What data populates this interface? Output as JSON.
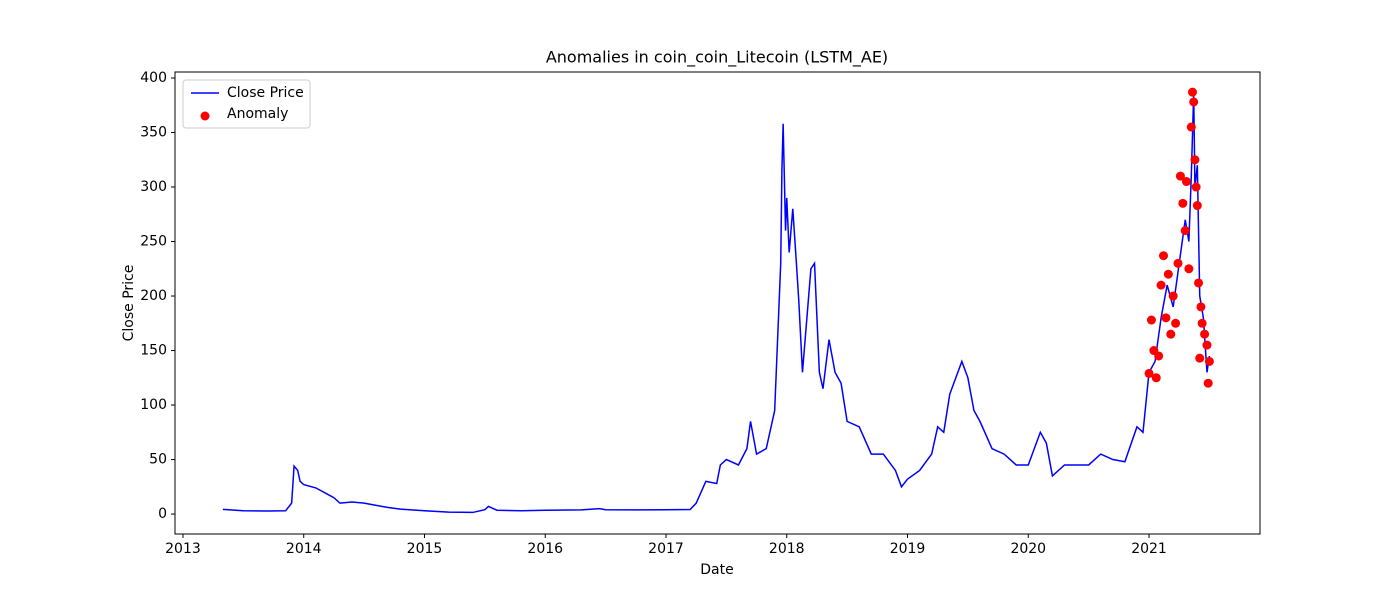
{
  "chart_data": {
    "type": "line",
    "title": "Anomalies in coin_coin_Litecoin (LSTM_AE)",
    "x_label": "Date",
    "y_label": "Close Price",
    "xlim": [
      2012.934,
      2021.919
    ],
    "ylim": [
      -18.3,
      405.5
    ],
    "xticks": [
      2013,
      2014,
      2015,
      2016,
      2017,
      2018,
      2019,
      2020,
      2021
    ],
    "yticks": [
      0,
      50,
      100,
      150,
      200,
      250,
      300,
      350,
      400
    ],
    "legend": "upper left",
    "series": [
      {
        "name": "Close Price",
        "type": "line",
        "color": "#0000ff",
        "x": [
          2013.33,
          2013.5,
          2013.7,
          2013.85,
          2013.9,
          2013.92,
          2013.95,
          2013.97,
          2014.0,
          2014.1,
          2014.2,
          2014.25,
          2014.3,
          2014.4,
          2014.5,
          2014.6,
          2014.7,
          2014.8,
          2015.0,
          2015.2,
          2015.4,
          2015.5,
          2015.53,
          2015.6,
          2015.8,
          2016.0,
          2016.3,
          2016.45,
          2016.5,
          2016.8,
          2017.0,
          2017.2,
          2017.25,
          2017.33,
          2017.42,
          2017.45,
          2017.5,
          2017.6,
          2017.67,
          2017.7,
          2017.75,
          2017.83,
          2017.9,
          2017.95,
          2017.96,
          2017.97,
          2017.99,
          2018.0,
          2018.02,
          2018.05,
          2018.08,
          2018.1,
          2018.13,
          2018.2,
          2018.23,
          2018.27,
          2018.3,
          2018.35,
          2018.4,
          2018.45,
          2018.5,
          2018.6,
          2018.7,
          2018.8,
          2018.9,
          2018.95,
          2019.0,
          2019.1,
          2019.2,
          2019.25,
          2019.3,
          2019.35,
          2019.45,
          2019.5,
          2019.55,
          2019.6,
          2019.7,
          2019.8,
          2019.9,
          2020.0,
          2020.1,
          2020.15,
          2020.2,
          2020.3,
          2020.5,
          2020.6,
          2020.7,
          2020.8,
          2020.9,
          2020.95,
          2021.0,
          2021.05,
          2021.1,
          2021.15,
          2021.2,
          2021.25,
          2021.3,
          2021.33,
          2021.35,
          2021.37,
          2021.38,
          2021.4,
          2021.42,
          2021.45,
          2021.48,
          2021.5
        ],
        "values": [
          4.3,
          3,
          2.8,
          3,
          10,
          44,
          40,
          30,
          27,
          24,
          18,
          15,
          10,
          11,
          10,
          8,
          6,
          4.5,
          3,
          1.8,
          1.5,
          4,
          7,
          3.5,
          3,
          3.5,
          3.8,
          5,
          4,
          3.8,
          4,
          4.2,
          10,
          30,
          28,
          45,
          50,
          45,
          60,
          85,
          55,
          60,
          95,
          230,
          316,
          358,
          260,
          290,
          240,
          280,
          230,
          195,
          130,
          225,
          230,
          130,
          115,
          160,
          130,
          120,
          85,
          80,
          55,
          55,
          40,
          25,
          32,
          40,
          55,
          80,
          75,
          110,
          140,
          125,
          95,
          85,
          60,
          55,
          45,
          45,
          75,
          65,
          35,
          45,
          45,
          55,
          50,
          48,
          80,
          75,
          130,
          140,
          180,
          210,
          190,
          230,
          270,
          250,
          310,
          386,
          300,
          320,
          200,
          180,
          130,
          145
        ]
      },
      {
        "name": "Anomaly",
        "type": "scatter",
        "color": "#ff0000",
        "x": [
          2021.0,
          2021.02,
          2021.04,
          2021.06,
          2021.08,
          2021.1,
          2021.12,
          2021.14,
          2021.16,
          2021.18,
          2021.2,
          2021.22,
          2021.24,
          2021.26,
          2021.28,
          2021.3,
          2021.31,
          2021.33,
          2021.35,
          2021.36,
          2021.37,
          2021.38,
          2021.39,
          2021.4,
          2021.41,
          2021.42,
          2021.43,
          2021.44,
          2021.46,
          2021.48,
          2021.49,
          2021.5
        ],
        "values": [
          129,
          178,
          150,
          125,
          145,
          210,
          237,
          180,
          220,
          165,
          200,
          175,
          230,
          310,
          285,
          260,
          305,
          225,
          355,
          387,
          378,
          325,
          300,
          283,
          212,
          143,
          190,
          175,
          165,
          155,
          120,
          140
        ]
      }
    ]
  }
}
